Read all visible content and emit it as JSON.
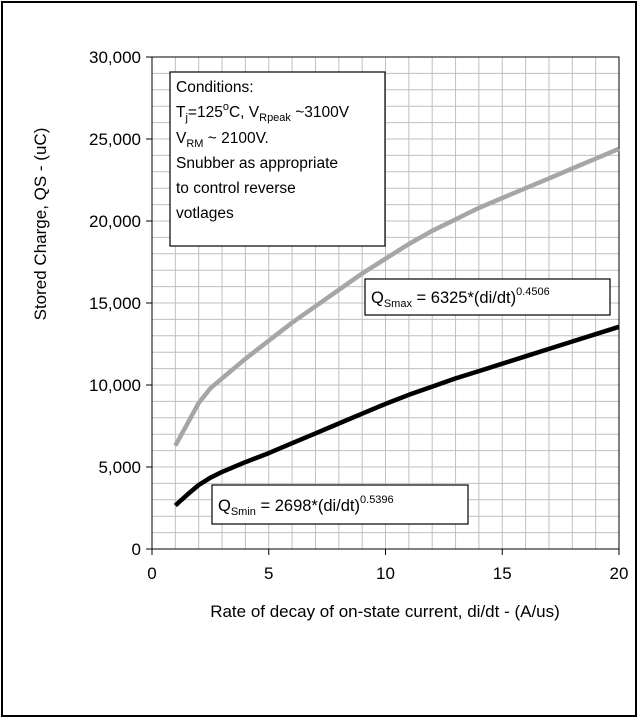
{
  "chart_data": {
    "type": "line",
    "xlabel": "Rate of decay of on-state current, di/dt - (A/us)",
    "ylabel": "Stored Charge, QS - (uC)",
    "xlim": [
      0,
      20
    ],
    "ylim": [
      0,
      30000
    ],
    "x_ticks": [
      "0",
      "5",
      "10",
      "15",
      "20"
    ],
    "y_ticks": [
      "0",
      "5,000",
      "10,000",
      "15,000",
      "20,000",
      "25,000",
      "30,000"
    ],
    "grid": true,
    "colors": {
      "max": "#a6a6a6",
      "min": "#000000",
      "grid": "#c0c0c0"
    },
    "series": [
      {
        "id": "max",
        "x": [
          1,
          1.5,
          2,
          2.5,
          3,
          4,
          5,
          6,
          7,
          8,
          9,
          10,
          11,
          12,
          13,
          14,
          15,
          16,
          17,
          18,
          19,
          20
        ],
        "values": [
          6300,
          7600,
          8900,
          9800,
          10400,
          11600,
          12700,
          13800,
          14800,
          15800,
          16800,
          17700,
          18600,
          19400,
          20100,
          20800,
          21400,
          22000,
          22600,
          23200,
          23800,
          24400
        ]
      },
      {
        "id": "min",
        "x": [
          1,
          1.5,
          2,
          2.5,
          3,
          4,
          5,
          6,
          7,
          8,
          9,
          10,
          11,
          12,
          13,
          14,
          15,
          16,
          17,
          18,
          19,
          20
        ],
        "values": [
          2650,
          3300,
          3900,
          4350,
          4700,
          5300,
          5850,
          6450,
          7050,
          7650,
          8250,
          8850,
          9400,
          9900,
          10400,
          10850,
          11300,
          11750,
          12200,
          12650,
          13100,
          13550
        ]
      }
    ],
    "conditions_box": {
      "line1": "Conditions:",
      "line2": {
        "t": "T",
        "t_sub": "j",
        "eq": "=125",
        "deg": "o",
        "unit": "C, V",
        "v_sub": "Rpeak",
        "tail": " ~3100V"
      },
      "line3": {
        "v": "V",
        "v_sub": "RM",
        "tail": " ~ 2100V."
      },
      "line4": "Snubber as appropriate",
      "line5": "to control reverse",
      "line6": "votlages"
    },
    "formula_max": {
      "q": "Q",
      "sub": "Smax",
      "eq": " = 6325*(di/dt)",
      "exp": "0.4506"
    },
    "formula_min": {
      "q": "Q",
      "sub": "Smin",
      "eq": " = 2698*(di/dt)",
      "exp": "0.5396"
    }
  }
}
